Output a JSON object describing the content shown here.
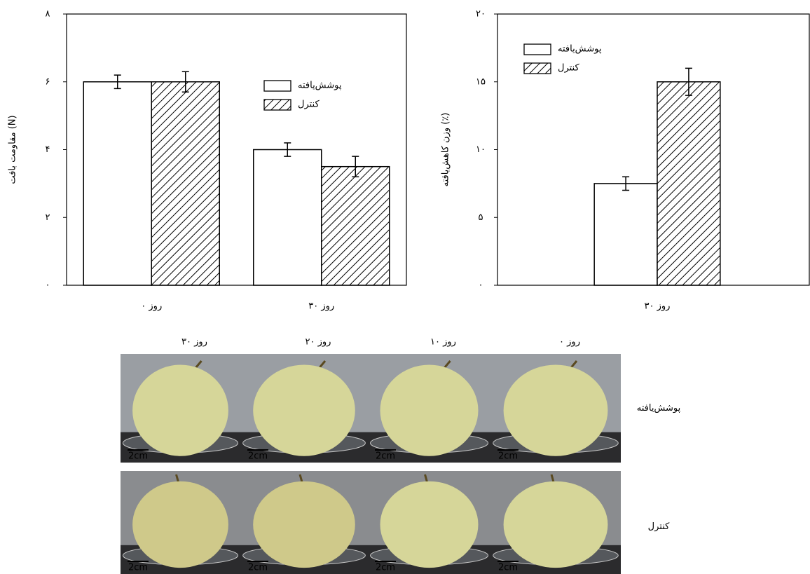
{
  "chart_data": [
    {
      "type": "bar",
      "y_label": "مقاومت بافت (N)",
      "categories": [
        "۰ روز",
        "۳۰ روز"
      ],
      "series": [
        {
          "name": "پوشش‌یافته",
          "color": "#ffffff",
          "hatch": false,
          "values": [
            6.0,
            4.0
          ],
          "errors": [
            0.2,
            0.2
          ]
        },
        {
          "name": "کنترل",
          "color": "#ffffff",
          "hatch": true,
          "values": [
            6.0,
            3.5
          ],
          "errors": [
            0.3,
            0.3
          ]
        }
      ],
      "ylim": [
        0,
        8
      ],
      "yticks": [
        {
          "value": 0,
          "label": "۰"
        },
        {
          "value": 2,
          "label": "۲"
        },
        {
          "value": 4,
          "label": "۴"
        },
        {
          "value": 6,
          "label": "۶"
        },
        {
          "value": 8,
          "label": "۸"
        }
      ],
      "grid": false
    },
    {
      "type": "bar",
      "y_label": "وزن کاهش‌یافته (٪)",
      "categories": [
        "۳۰ روز"
      ],
      "series": [
        {
          "name": "پوشش‌یافته",
          "color": "#ffffff",
          "hatch": false,
          "values": [
            7.5
          ],
          "errors": [
            0.5
          ]
        },
        {
          "name": "کنترل",
          "color": "#ffffff",
          "hatch": true,
          "values": [
            15
          ],
          "errors": [
            1.0
          ]
        }
      ],
      "ylim": [
        0,
        20
      ],
      "yticks": [
        {
          "value": 0,
          "label": "۰"
        },
        {
          "value": 5,
          "label": "۵"
        },
        {
          "value": 10,
          "label": "۱۰"
        },
        {
          "value": 15,
          "label": "۱۵"
        },
        {
          "value": 20,
          "label": "۲۰"
        }
      ],
      "grid": false
    }
  ],
  "photo_grid": {
    "columns": [
      "۳۰ روز",
      "۲۰ روز",
      "۱۰ روز",
      "۰ روز"
    ],
    "rows": [
      "پوشش‌یافته",
      "کنترل"
    ],
    "scale_label": "2cm"
  }
}
